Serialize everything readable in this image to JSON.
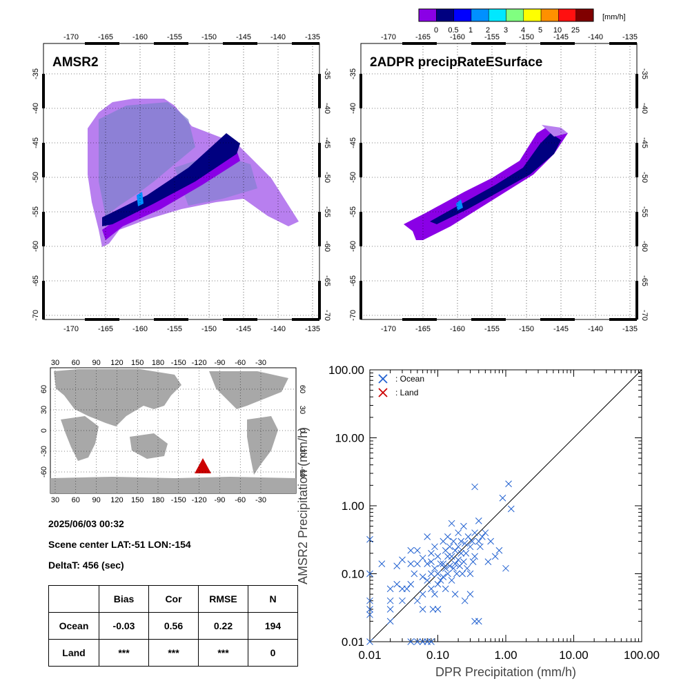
{
  "colorbar": {
    "colors": [
      "#8a00e6",
      "#000080",
      "#0000ff",
      "#0090ff",
      "#00e8ff",
      "#80ff80",
      "#ffff00",
      "#ff9000",
      "#ff1010",
      "#800000"
    ],
    "labels": [
      "0",
      "0.5",
      "1",
      "2",
      "3",
      "4",
      "5",
      "10",
      "25"
    ],
    "unit": "[mm/h]"
  },
  "map_top_left": {
    "title": "AMSR2",
    "lon_ticks": [
      "-170",
      "-165",
      "-160",
      "-155",
      "-150",
      "-145",
      "-140",
      "-135"
    ],
    "lat_ticks": [
      "-35",
      "-40",
      "-45",
      "-50",
      "-55",
      "-60",
      "-65",
      "-70"
    ]
  },
  "map_top_right": {
    "title": "2ADPR precipRateESurface",
    "lon_ticks": [
      "-170",
      "-165",
      "-160",
      "-155",
      "-150",
      "-145",
      "-140",
      "-135"
    ],
    "lat_ticks": [
      "-35",
      "-40",
      "-45",
      "-50",
      "-55",
      "-60",
      "-65",
      "-70"
    ]
  },
  "world_map": {
    "lon_ticks": [
      "30",
      "60",
      "90",
      "120",
      "150",
      "180",
      "-150",
      "-120",
      "-90",
      "-60",
      "-30"
    ],
    "lat_ticks": [
      "60",
      "30",
      "0",
      "-30",
      "-60"
    ],
    "marker_color": "#cc0000"
  },
  "info": {
    "datetime": "2025/06/03 00:32",
    "scene_center": "Scene center LAT:-51   LON:-154",
    "delta": "DeltaT:  456 (sec)"
  },
  "stats": {
    "headers": [
      "",
      "Bias",
      "Cor",
      "RMSE",
      "N"
    ],
    "rows": [
      [
        "Ocean",
        "-0.03",
        "0.56",
        "0.22",
        "194"
      ],
      [
        "Land",
        "***",
        "***",
        "***",
        "0"
      ]
    ]
  },
  "chart_data": {
    "type": "scatter",
    "xlabel": "DPR Precipitation (mm/h)",
    "ylabel": "AMSR2 Precipitation (mm/h)",
    "xscale": "log",
    "yscale": "log",
    "xlim": [
      0.01,
      100
    ],
    "ylim": [
      0.01,
      100
    ],
    "tick_labels": [
      "0.01",
      "0.10",
      "1.00",
      "10.00",
      "100.00"
    ],
    "legend_position": "top-left",
    "series": [
      {
        "name": ": Ocean",
        "color": "#2060d0",
        "points": [
          [
            0.01,
            0.32
          ],
          [
            0.01,
            0.1
          ],
          [
            0.01,
            0.04
          ],
          [
            0.01,
            0.03
          ],
          [
            0.01,
            0.025
          ],
          [
            0.01,
            0.01
          ],
          [
            0.015,
            0.14
          ],
          [
            0.02,
            0.06
          ],
          [
            0.02,
            0.04
          ],
          [
            0.02,
            0.03
          ],
          [
            0.02,
            0.02
          ],
          [
            0.025,
            0.13
          ],
          [
            0.025,
            0.07
          ],
          [
            0.03,
            0.16
          ],
          [
            0.03,
            0.06
          ],
          [
            0.03,
            0.04
          ],
          [
            0.035,
            0.06
          ],
          [
            0.04,
            0.22
          ],
          [
            0.04,
            0.14
          ],
          [
            0.04,
            0.07
          ],
          [
            0.045,
            0.1
          ],
          [
            0.05,
            0.22
          ],
          [
            0.05,
            0.14
          ],
          [
            0.05,
            0.04
          ],
          [
            0.06,
            0.17
          ],
          [
            0.06,
            0.09
          ],
          [
            0.06,
            0.05
          ],
          [
            0.06,
            0.03
          ],
          [
            0.07,
            0.35
          ],
          [
            0.07,
            0.14
          ],
          [
            0.07,
            0.08
          ],
          [
            0.08,
            0.2
          ],
          [
            0.08,
            0.15
          ],
          [
            0.08,
            0.1
          ],
          [
            0.08,
            0.06
          ],
          [
            0.085,
            0.03
          ],
          [
            0.09,
            0.25
          ],
          [
            0.09,
            0.12
          ],
          [
            0.09,
            0.05
          ],
          [
            0.1,
            0.18
          ],
          [
            0.1,
            0.1
          ],
          [
            0.1,
            0.07
          ],
          [
            0.11,
            0.14
          ],
          [
            0.11,
            0.08
          ],
          [
            0.12,
            0.3
          ],
          [
            0.12,
            0.14
          ],
          [
            0.12,
            0.09
          ],
          [
            0.13,
            0.22
          ],
          [
            0.13,
            0.12
          ],
          [
            0.13,
            0.06
          ],
          [
            0.14,
            0.35
          ],
          [
            0.14,
            0.18
          ],
          [
            0.14,
            0.1
          ],
          [
            0.15,
            0.25
          ],
          [
            0.15,
            0.13
          ],
          [
            0.16,
            0.55
          ],
          [
            0.16,
            0.18
          ],
          [
            0.16,
            0.08
          ],
          [
            0.17,
            0.3
          ],
          [
            0.17,
            0.12
          ],
          [
            0.18,
            0.22
          ],
          [
            0.18,
            0.14
          ],
          [
            0.19,
            0.1
          ],
          [
            0.2,
            0.4
          ],
          [
            0.2,
            0.25
          ],
          [
            0.2,
            0.16
          ],
          [
            0.21,
            0.13
          ],
          [
            0.22,
            0.3
          ],
          [
            0.22,
            0.2
          ],
          [
            0.23,
            0.1
          ],
          [
            0.24,
            0.5
          ],
          [
            0.24,
            0.15
          ],
          [
            0.25,
            0.28
          ],
          [
            0.26,
            0.2
          ],
          [
            0.27,
            0.12
          ],
          [
            0.28,
            0.35
          ],
          [
            0.3,
            0.25
          ],
          [
            0.3,
            0.1
          ],
          [
            0.32,
            0.3
          ],
          [
            0.33,
            0.15
          ],
          [
            0.35,
            1.9
          ],
          [
            0.35,
            0.4
          ],
          [
            0.35,
            0.18
          ],
          [
            0.4,
            0.6
          ],
          [
            0.4,
            0.3
          ],
          [
            0.42,
            0.25
          ],
          [
            0.45,
            0.35
          ],
          [
            0.5,
            0.4
          ],
          [
            0.55,
            0.15
          ],
          [
            0.6,
            0.3
          ],
          [
            0.7,
            0.18
          ],
          [
            0.8,
            0.22
          ],
          [
            0.9,
            1.3
          ],
          [
            1.0,
            0.12
          ],
          [
            1.1,
            2.1
          ],
          [
            1.2,
            0.9
          ],
          [
            0.3,
            0.05
          ],
          [
            0.35,
            0.02
          ],
          [
            0.4,
            0.02
          ],
          [
            0.25,
            0.04
          ],
          [
            0.18,
            0.05
          ],
          [
            0.1,
            0.03
          ],
          [
            0.06,
            0.01
          ],
          [
            0.07,
            0.01
          ],
          [
            0.08,
            0.01
          ],
          [
            0.04,
            0.01
          ],
          [
            0.05,
            0.01
          ]
        ]
      },
      {
        "name": ": Land",
        "color": "#cc0000",
        "points": []
      }
    ]
  }
}
